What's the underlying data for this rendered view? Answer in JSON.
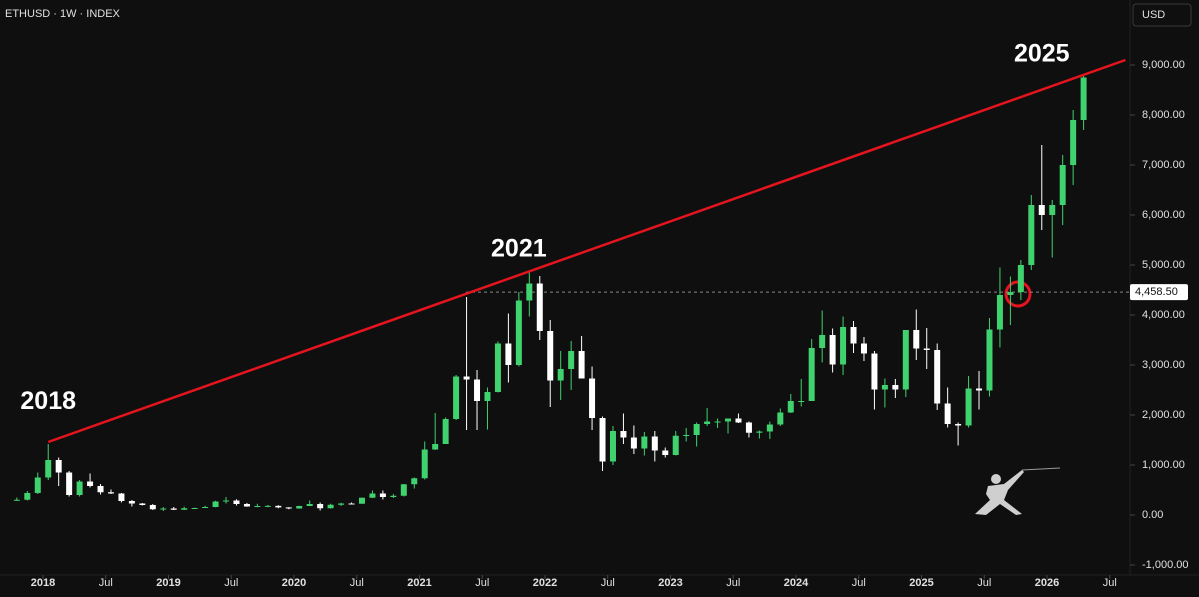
{
  "chart_data": {
    "type": "candlestick",
    "title": "ETHUSD · 1W · INDEX",
    "currency": "USD",
    "up_color": "#3fd26e",
    "down_color": "#ffffff",
    "x": [
      "2017-10",
      "2017-11",
      "2017-12",
      "2018-01",
      "2018-02",
      "2018-03",
      "2018-04",
      "2018-05",
      "2018-06",
      "2018-07",
      "2018-08",
      "2018-09",
      "2018-10",
      "2018-11",
      "2018-12",
      "2019-01",
      "2019-02",
      "2019-03",
      "2019-04",
      "2019-05",
      "2019-06",
      "2019-07",
      "2019-08",
      "2019-09",
      "2019-10",
      "2019-11",
      "2019-12",
      "2020-01",
      "2020-02",
      "2020-03",
      "2020-04",
      "2020-05",
      "2020-06",
      "2020-07",
      "2020-08",
      "2020-09",
      "2020-10",
      "2020-11",
      "2020-12",
      "2021-01",
      "2021-02",
      "2021-03",
      "2021-04",
      "2021-05",
      "2021-06",
      "2021-07",
      "2021-08",
      "2021-09",
      "2021-10",
      "2021-11",
      "2021-12",
      "2022-01",
      "2022-02",
      "2022-03",
      "2022-04",
      "2022-05",
      "2022-06",
      "2022-07",
      "2022-08",
      "2022-09",
      "2022-10",
      "2022-11",
      "2022-12",
      "2023-01",
      "2023-02",
      "2023-03",
      "2023-04",
      "2023-05",
      "2023-06",
      "2023-07",
      "2023-08",
      "2023-09",
      "2023-10",
      "2023-11",
      "2023-12",
      "2024-01",
      "2024-02",
      "2024-03",
      "2024-04",
      "2024-05",
      "2024-06",
      "2024-07",
      "2024-08",
      "2024-09",
      "2024-10",
      "2024-11",
      "2024-12",
      "2025-01",
      "2025-02",
      "2025-03",
      "2025-04",
      "2025-05",
      "2025-06",
      "2025-07",
      "2025-08",
      "2025-09",
      "2025-10",
      "2025-11",
      "2025-12",
      "2026-01",
      "2026-02",
      "2026-03",
      "2026-04"
    ],
    "ohlc": [
      [
        300,
        350,
        280,
        305
      ],
      [
        305,
        480,
        290,
        440
      ],
      [
        440,
        850,
        420,
        750
      ],
      [
        750,
        1420,
        700,
        1100
      ],
      [
        1100,
        1150,
        580,
        850
      ],
      [
        850,
        880,
        370,
        400
      ],
      [
        400,
        700,
        370,
        670
      ],
      [
        670,
        830,
        550,
        580
      ],
      [
        580,
        620,
        410,
        455
      ],
      [
        455,
        510,
        420,
        430
      ],
      [
        430,
        440,
        250,
        280
      ],
      [
        280,
        300,
        170,
        230
      ],
      [
        230,
        240,
        190,
        200
      ],
      [
        200,
        220,
        100,
        115
      ],
      [
        115,
        160,
        80,
        130
      ],
      [
        130,
        160,
        100,
        105
      ],
      [
        105,
        165,
        100,
        135
      ],
      [
        135,
        145,
        125,
        140
      ],
      [
        140,
        185,
        140,
        160
      ],
      [
        160,
        285,
        155,
        270
      ],
      [
        270,
        360,
        230,
        290
      ],
      [
        290,
        315,
        190,
        220
      ],
      [
        220,
        240,
        165,
        170
      ],
      [
        170,
        225,
        155,
        180
      ],
      [
        180,
        200,
        155,
        183
      ],
      [
        183,
        195,
        135,
        152
      ],
      [
        152,
        155,
        115,
        130
      ],
      [
        130,
        185,
        125,
        180
      ],
      [
        180,
        290,
        180,
        220
      ],
      [
        220,
        250,
        90,
        135
      ],
      [
        135,
        225,
        130,
        205
      ],
      [
        205,
        245,
        180,
        230
      ],
      [
        230,
        250,
        220,
        225
      ],
      [
        225,
        350,
        225,
        345
      ],
      [
        345,
        490,
        340,
        430
      ],
      [
        430,
        490,
        310,
        360
      ],
      [
        360,
        420,
        340,
        385
      ],
      [
        385,
        620,
        370,
        615
      ],
      [
        615,
        750,
        530,
        735
      ],
      [
        735,
        1470,
        710,
        1310
      ],
      [
        1310,
        2040,
        1300,
        1420
      ],
      [
        1420,
        1950,
        1430,
        1920
      ],
      [
        1920,
        2800,
        1900,
        2770
      ],
      [
        2770,
        4360,
        1700,
        2710
      ],
      [
        2710,
        2900,
        1700,
        2280
      ],
      [
        2280,
        2550,
        1710,
        2460
      ],
      [
        2460,
        3470,
        2450,
        3430
      ],
      [
        3430,
        4030,
        2650,
        3000
      ],
      [
        3000,
        4460,
        2970,
        4290
      ],
      [
        4290,
        4860,
        3970,
        4630
      ],
      [
        4630,
        4780,
        3500,
        3680
      ],
      [
        3680,
        3900,
        2160,
        2690
      ],
      [
        2690,
        3280,
        2300,
        2920
      ],
      [
        2920,
        3480,
        2500,
        3280
      ],
      [
        3280,
        3580,
        2800,
        2730
      ],
      [
        2730,
        2970,
        1700,
        1940
      ],
      [
        1940,
        1970,
        880,
        1070
      ],
      [
        1070,
        1780,
        1000,
        1680
      ],
      [
        1680,
        2030,
        1420,
        1550
      ],
      [
        1550,
        1790,
        1220,
        1330
      ],
      [
        1330,
        1660,
        1190,
        1570
      ],
      [
        1570,
        1680,
        1070,
        1290
      ],
      [
        1290,
        1350,
        1150,
        1200
      ],
      [
        1200,
        1680,
        1190,
        1585
      ],
      [
        1585,
        1740,
        1470,
        1600
      ],
      [
        1600,
        1850,
        1370,
        1820
      ],
      [
        1820,
        2140,
        1780,
        1870
      ],
      [
        1870,
        1930,
        1740,
        1870
      ],
      [
        1870,
        1930,
        1630,
        1930
      ],
      [
        1930,
        2030,
        1840,
        1850
      ],
      [
        1850,
        1870,
        1550,
        1645
      ],
      [
        1645,
        1690,
        1530,
        1670
      ],
      [
        1670,
        1870,
        1520,
        1810
      ],
      [
        1810,
        2130,
        1780,
        2050
      ],
      [
        2050,
        2420,
        2040,
        2280
      ],
      [
        2280,
        2720,
        2170,
        2280
      ],
      [
        2280,
        3520,
        2280,
        3340
      ],
      [
        3340,
        4090,
        3050,
        3600
      ],
      [
        3600,
        3730,
        2850,
        3010
      ],
      [
        3010,
        3970,
        2800,
        3760
      ],
      [
        3760,
        3880,
        3240,
        3430
      ],
      [
        3430,
        3560,
        3080,
        3230
      ],
      [
        3230,
        3280,
        2110,
        2510
      ],
      [
        2510,
        2730,
        2150,
        2600
      ],
      [
        2600,
        2720,
        2340,
        2510
      ],
      [
        2510,
        3700,
        2360,
        3700
      ],
      [
        3700,
        4110,
        3100,
        3330
      ],
      [
        3330,
        3740,
        2920,
        3300
      ],
      [
        3300,
        3430,
        2100,
        2230
      ],
      [
        2230,
        2550,
        1750,
        1820
      ],
      [
        1820,
        1850,
        1390,
        1790
      ],
      [
        1790,
        2780,
        1750,
        2530
      ],
      [
        2530,
        2880,
        2110,
        2490
      ],
      [
        2490,
        3940,
        2370,
        3710
      ],
      [
        3710,
        4950,
        3350,
        4400
      ],
      [
        4400,
        4770,
        3800,
        4458.5
      ],
      [
        4458.5,
        5100,
        4300,
        5000
      ],
      [
        5000,
        6400,
        4900,
        6200
      ],
      [
        6200,
        7400,
        5700,
        6000
      ],
      [
        6000,
        6300,
        5150,
        6200
      ],
      [
        6200,
        7200,
        5800,
        7000
      ],
      [
        7000,
        8100,
        6600,
        7900
      ],
      [
        7900,
        8800,
        7700,
        8750
      ]
    ],
    "ylim": [
      -1200,
      10300
    ],
    "yticks": [
      {
        "value": -1000,
        "label": "-1,000.00"
      },
      {
        "value": 0,
        "label": "0.00"
      },
      {
        "value": 1000,
        "label": "1,000.00"
      },
      {
        "value": 2000,
        "label": "2,000.00"
      },
      {
        "value": 3000,
        "label": "3,000.00"
      },
      {
        "value": 4000,
        "label": "4,000.00"
      },
      {
        "value": 5000,
        "label": "5,000.00"
      },
      {
        "value": 6000,
        "label": "6,000.00"
      },
      {
        "value": 7000,
        "label": "7,000.00"
      },
      {
        "value": 8000,
        "label": "8,000.00"
      },
      {
        "value": 9000,
        "label": "9,000.00"
      }
    ],
    "xticks": [
      {
        "value": "2018-01",
        "label": "2018"
      },
      {
        "value": "2018-07",
        "label": "Jul"
      },
      {
        "value": "2019-01",
        "label": "2019"
      },
      {
        "value": "2019-07",
        "label": "Jul"
      },
      {
        "value": "2020-01",
        "label": "2020"
      },
      {
        "value": "2020-07",
        "label": "Jul"
      },
      {
        "value": "2021-01",
        "label": "2021"
      },
      {
        "value": "2021-07",
        "label": "Jul"
      },
      {
        "value": "2022-01",
        "label": "2022"
      },
      {
        "value": "2022-07",
        "label": "Jul"
      },
      {
        "value": "2023-01",
        "label": "2023"
      },
      {
        "value": "2023-07",
        "label": "Jul"
      },
      {
        "value": "2024-01",
        "label": "2024"
      },
      {
        "value": "2024-07",
        "label": "Jul"
      },
      {
        "value": "2025-01",
        "label": "2025"
      },
      {
        "value": "2025-07",
        "label": "Jul"
      },
      {
        "value": "2026-01",
        "label": "2026"
      },
      {
        "value": "2026-07",
        "label": "Jul"
      }
    ],
    "last_price": {
      "value": 4458.5,
      "label": "4,458.50"
    },
    "trendline": {
      "color": "#e5141e",
      "points": [
        {
          "x": "2018-01",
          "y": 1460
        },
        {
          "x": "2026-08",
          "y": 9100
        }
      ]
    },
    "annotations": [
      {
        "text": "2018",
        "x": "2018-01",
        "y": 2250
      },
      {
        "text": "2021",
        "x": "2021-10",
        "y": 5300
      },
      {
        "text": "2025",
        "x": "2025-12",
        "y": 9200
      }
    ]
  }
}
